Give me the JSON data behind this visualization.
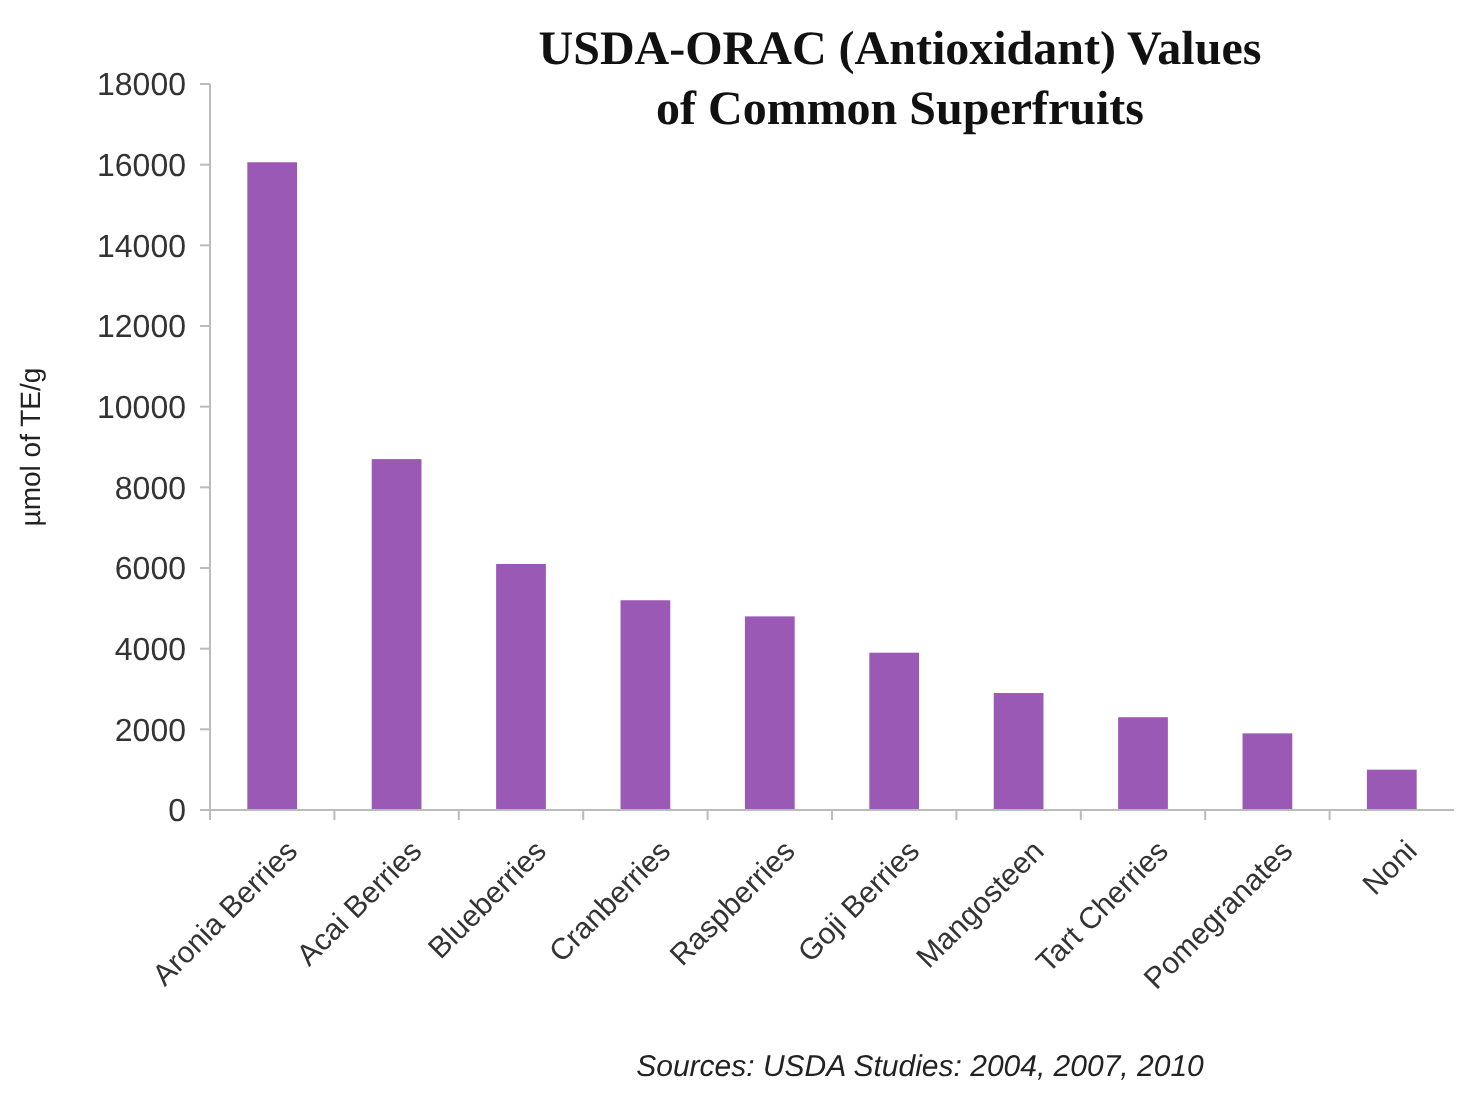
{
  "chart_data": {
    "type": "bar",
    "title": "USDA-ORAC (Antioxidant) Values of Common Superfruits",
    "ylabel": "µmol of TE/g",
    "categories": [
      "Aronia Berries",
      "Acai Berries",
      "Blueberries",
      "Cranberries",
      "Raspberries",
      "Goji Berries",
      "Mangosteen",
      "Tart Cherries",
      "Pomegranates",
      "Noni"
    ],
    "values": [
      16060,
      8700,
      6100,
      5200,
      4800,
      3900,
      2900,
      2300,
      1900,
      1000
    ],
    "color": "#9b59b6",
    "ylim": [
      0,
      18000
    ],
    "yticks": [
      0,
      2000,
      4000,
      6000,
      8000,
      10000,
      12000,
      14000,
      16000,
      18000
    ],
    "grid": false,
    "annotations": [
      "Sources: USDA Studies: 2004, 2007, 2010"
    ]
  }
}
